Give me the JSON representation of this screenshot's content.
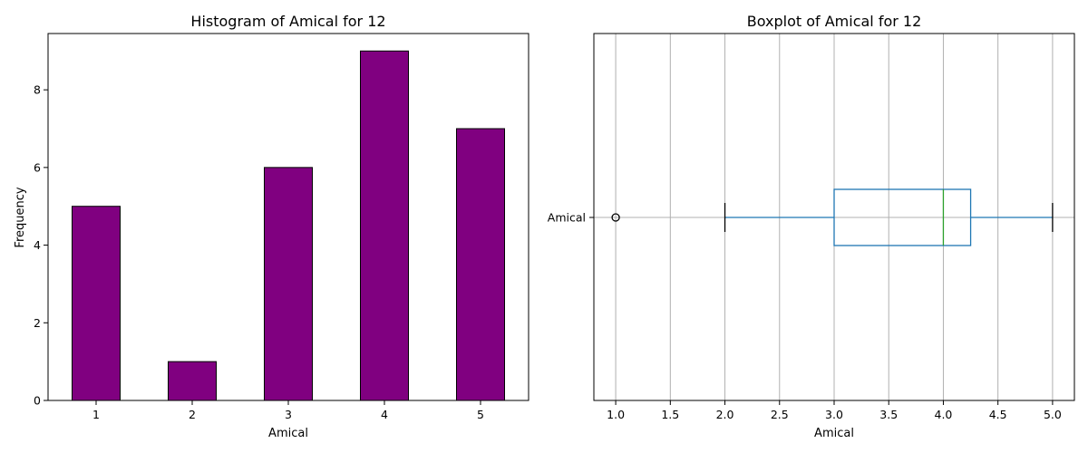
{
  "chart_data": [
    {
      "type": "bar",
      "title": "Histogram of Amical for 12",
      "xlabel": "Amical",
      "ylabel": "Frequency",
      "categories": [
        "1",
        "2",
        "3",
        "4",
        "5"
      ],
      "values": [
        5,
        1,
        6,
        9,
        7
      ],
      "ylim": [
        0,
        9.45
      ],
      "yticks": [
        "0",
        "2",
        "4",
        "6",
        "8"
      ],
      "grid": false,
      "bar_color": "#800080",
      "edge_color": "#000000"
    },
    {
      "type": "boxplot",
      "title": "Boxplot of Amical for 12",
      "xlabel": "Amical",
      "series_label": "Amical",
      "xlim": [
        0.8,
        5.2
      ],
      "xticks": [
        "1.0",
        "1.5",
        "2.0",
        "2.5",
        "3.0",
        "3.5",
        "4.0",
        "4.5",
        "5.0"
      ],
      "grid": true,
      "whisker_low": 2.0,
      "q1": 3.0,
      "median": 4.0,
      "q3": 4.25,
      "whisker_high": 5.0,
      "outliers": [
        1.0
      ],
      "box_color": "#1f77b4",
      "median_color": "#2ca02c"
    }
  ]
}
